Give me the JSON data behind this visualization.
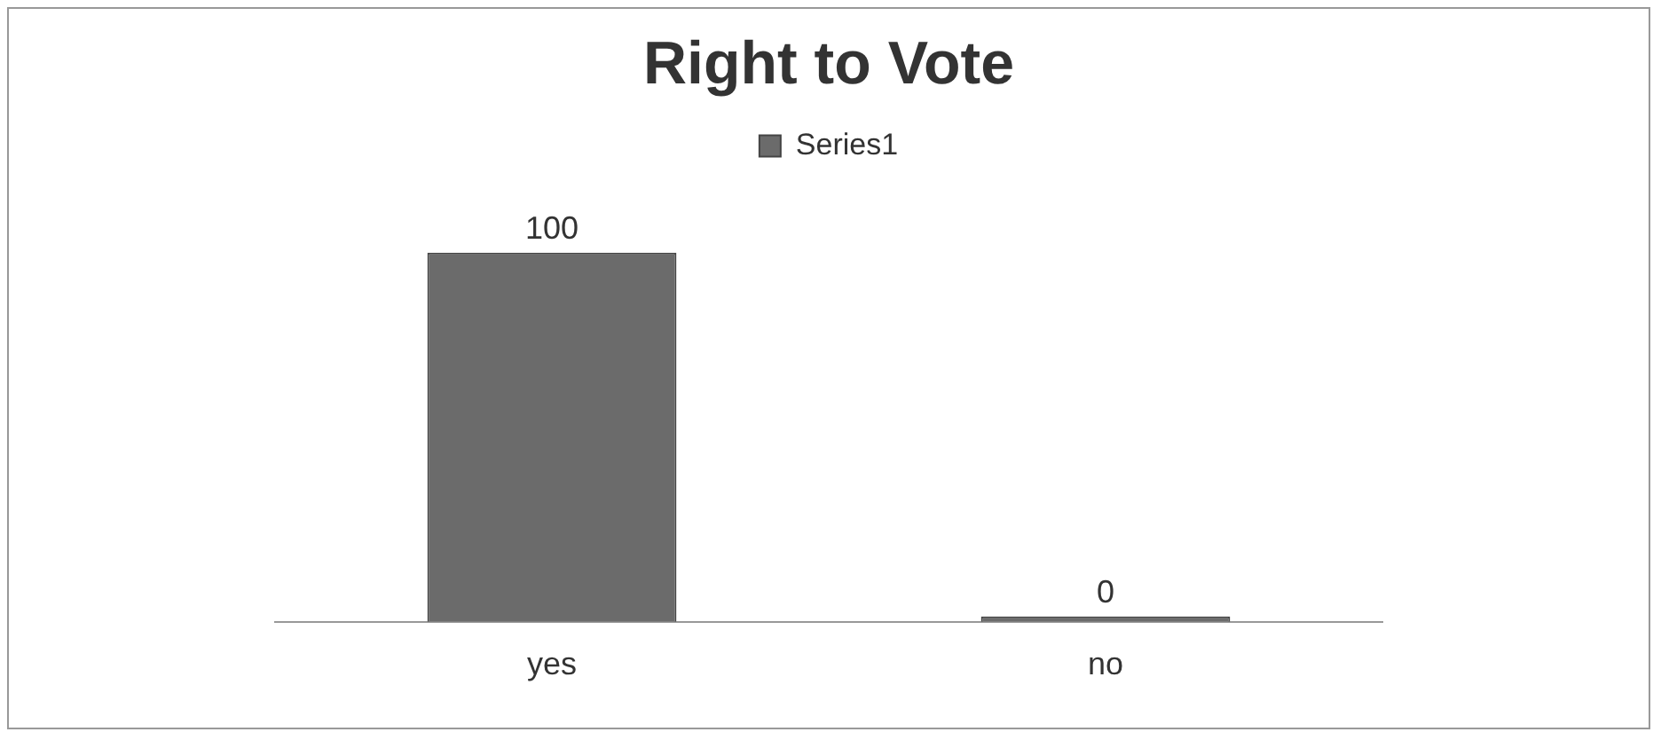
{
  "chart_data": {
    "type": "bar",
    "title": "Right to Vote",
    "categories": [
      "yes",
      "no"
    ],
    "series": [
      {
        "name": "Series1",
        "color": "#6b6b6b",
        "values": [
          100,
          0
        ]
      }
    ],
    "data_labels": true,
    "legend": "top",
    "grid": false
  }
}
